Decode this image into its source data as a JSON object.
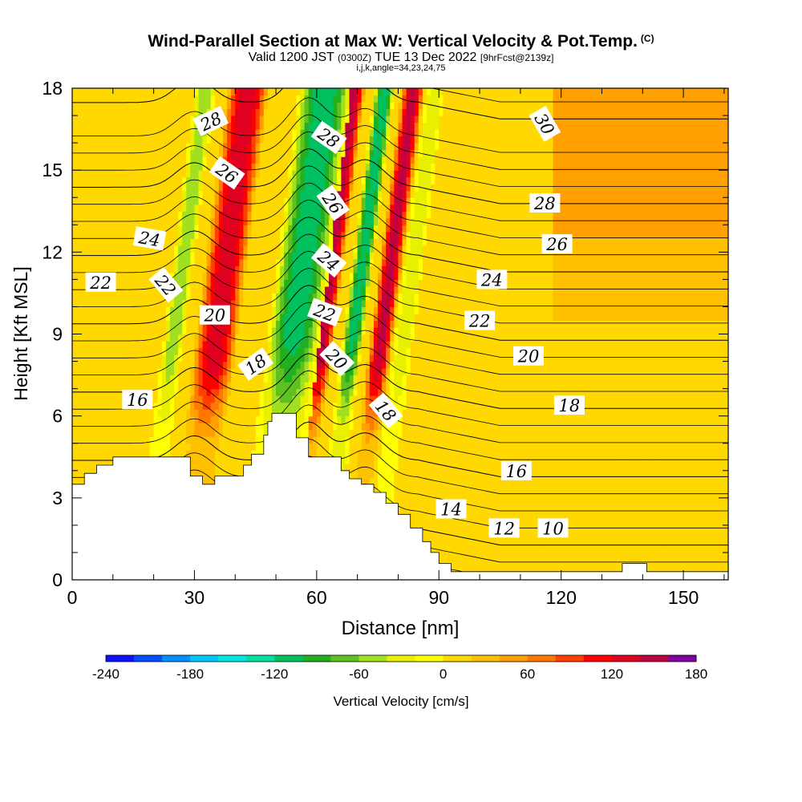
{
  "chart_data": {
    "type": "heatmap",
    "title": "Wind-Parallel Section at Max W: Vertical Velocity & Pot.Temp.",
    "title_mark": "(C)",
    "subtitle_valid": "Valid 1200 JST",
    "subtitle_z": "(0300Z)",
    "subtitle_date": "TUE 13 Dec 2022",
    "subtitle_fcst": "[9hrFcst@2139z]",
    "subtitle_index": "i,j,k,angle=34,23,24,75",
    "xlabel": "Distance [nm]",
    "ylabel": "Height [Kft MSL]",
    "xlim": [
      0,
      161
    ],
    "ylim": [
      0,
      18
    ],
    "x_ticks": [
      0,
      30,
      60,
      90,
      120,
      150
    ],
    "y_ticks": [
      0,
      3,
      6,
      9,
      12,
      15,
      18
    ],
    "colorbar": {
      "label": "Vertical Velocity [cm/s]",
      "range": [
        -240,
        180
      ],
      "step": 20,
      "tick_labels": [
        "-240",
        "-180",
        "-120",
        "-60",
        "0",
        "60",
        "120",
        "180"
      ],
      "colors": [
        "#1010ff",
        "#0050ff",
        "#0090ff",
        "#00c8ff",
        "#00e8e0",
        "#00e0a0",
        "#00c060",
        "#20b020",
        "#60c020",
        "#a0e020",
        "#e8f000",
        "#ffff00",
        "#ffd800",
        "#ffc000",
        "#ffa000",
        "#ff7800",
        "#ff4000",
        "#ff0000",
        "#e00020",
        "#c00040",
        "#8000a0"
      ]
    },
    "updraft_bands": [
      {
        "x": [
          30,
          36
        ],
        "w": 140
      },
      {
        "x": [
          58,
          60
        ],
        "w": 150
      },
      {
        "x": [
          72,
          75
        ],
        "w": 150
      },
      {
        "x": [
          118,
          161
        ],
        "w": 40
      }
    ],
    "downdraft_bands": [
      {
        "x": [
          21,
          24
        ],
        "w": -60
      },
      {
        "x": [
          48,
          56
        ],
        "w": -120
      },
      {
        "x": [
          65,
          68
        ],
        "w": -120
      },
      {
        "x": [
          78,
          80
        ],
        "w": -40
      }
    ],
    "theta_contours": [
      {
        "value": 10,
        "label": "10"
      },
      {
        "value": 12,
        "label": "12"
      },
      {
        "value": 14,
        "label": "14"
      },
      {
        "value": 16,
        "label": "16"
      },
      {
        "value": 18,
        "label": "18"
      },
      {
        "value": 20,
        "label": "20"
      },
      {
        "value": 22,
        "label": "22"
      },
      {
        "value": 24,
        "label": "24"
      },
      {
        "value": 26,
        "label": "26"
      },
      {
        "value": 28,
        "label": "28"
      },
      {
        "value": 30,
        "label": "30"
      }
    ],
    "contour_labels": [
      {
        "text": "28",
        "x": 34,
        "y": 16.8,
        "angle": -25
      },
      {
        "text": "26",
        "x": 38,
        "y": 14.9,
        "angle": 35
      },
      {
        "text": "24",
        "x": 19,
        "y": 12.5,
        "angle": 10
      },
      {
        "text": "22",
        "x": 7,
        "y": 10.9,
        "angle": 0
      },
      {
        "text": "22",
        "x": 23,
        "y": 10.8,
        "angle": 50
      },
      {
        "text": "20",
        "x": 35,
        "y": 9.7,
        "angle": 0
      },
      {
        "text": "18",
        "x": 45,
        "y": 7.9,
        "angle": -35
      },
      {
        "text": "16",
        "x": 16,
        "y": 6.6,
        "angle": 0
      },
      {
        "text": "28",
        "x": 63,
        "y": 16.2,
        "angle": 35
      },
      {
        "text": "26",
        "x": 64,
        "y": 13.8,
        "angle": 55
      },
      {
        "text": "24",
        "x": 63,
        "y": 11.7,
        "angle": 40
      },
      {
        "text": "22",
        "x": 62,
        "y": 9.8,
        "angle": 20
      },
      {
        "text": "20",
        "x": 65,
        "y": 8.1,
        "angle": 45
      },
      {
        "text": "18",
        "x": 77,
        "y": 6.2,
        "angle": 50
      },
      {
        "text": "30",
        "x": 116,
        "y": 16.7,
        "angle": 60
      },
      {
        "text": "28",
        "x": 116,
        "y": 13.8,
        "angle": 0
      },
      {
        "text": "26",
        "x": 119,
        "y": 12.3,
        "angle": 0
      },
      {
        "text": "24",
        "x": 103,
        "y": 11.0,
        "angle": 0
      },
      {
        "text": "22",
        "x": 100,
        "y": 9.5,
        "angle": 0
      },
      {
        "text": "20",
        "x": 112,
        "y": 8.2,
        "angle": 0
      },
      {
        "text": "18",
        "x": 122,
        "y": 6.4,
        "angle": 0
      },
      {
        "text": "16",
        "x": 109,
        "y": 4.0,
        "angle": 0
      },
      {
        "text": "14",
        "x": 93,
        "y": 2.6,
        "angle": 0
      },
      {
        "text": "12",
        "x": 106,
        "y": 1.9,
        "angle": 0
      },
      {
        "text": "10",
        "x": 118,
        "y": 1.9,
        "angle": 0
      }
    ],
    "terrain_kft": [
      [
        0,
        3.5
      ],
      [
        3,
        3.5
      ],
      [
        3,
        3.9
      ],
      [
        6,
        3.9
      ],
      [
        6,
        4.2
      ],
      [
        10,
        4.2
      ],
      [
        10,
        4.5
      ],
      [
        29,
        4.5
      ],
      [
        29,
        3.8
      ],
      [
        32,
        3.8
      ],
      [
        32,
        3.5
      ],
      [
        35,
        3.5
      ],
      [
        35,
        3.8
      ],
      [
        42,
        3.8
      ],
      [
        42,
        4.2
      ],
      [
        44,
        4.2
      ],
      [
        44,
        4.6
      ],
      [
        47,
        4.6
      ],
      [
        47,
        5.3
      ],
      [
        48,
        5.3
      ],
      [
        48,
        5.8
      ],
      [
        49,
        5.8
      ],
      [
        49,
        6.1
      ],
      [
        55,
        6.1
      ],
      [
        55,
        5.2
      ],
      [
        58,
        5.2
      ],
      [
        58,
        4.5
      ],
      [
        66,
        4.5
      ],
      [
        66,
        4.0
      ],
      [
        68,
        4.0
      ],
      [
        68,
        3.7
      ],
      [
        71,
        3.7
      ],
      [
        71,
        3.5
      ],
      [
        74,
        3.5
      ],
      [
        74,
        3.2
      ],
      [
        77,
        3.2
      ],
      [
        77,
        2.8
      ],
      [
        80,
        2.8
      ],
      [
        80,
        2.4
      ],
      [
        83,
        2.4
      ],
      [
        83,
        1.9
      ],
      [
        86,
        1.9
      ],
      [
        86,
        1.4
      ],
      [
        88,
        1.4
      ],
      [
        88,
        1.0
      ],
      [
        90,
        1.0
      ],
      [
        90,
        0.6
      ],
      [
        93,
        0.6
      ],
      [
        93,
        0.3
      ],
      [
        135,
        0.3
      ],
      [
        135,
        0.6
      ],
      [
        141,
        0.6
      ],
      [
        141,
        0.3
      ],
      [
        161,
        0.3
      ]
    ]
  }
}
